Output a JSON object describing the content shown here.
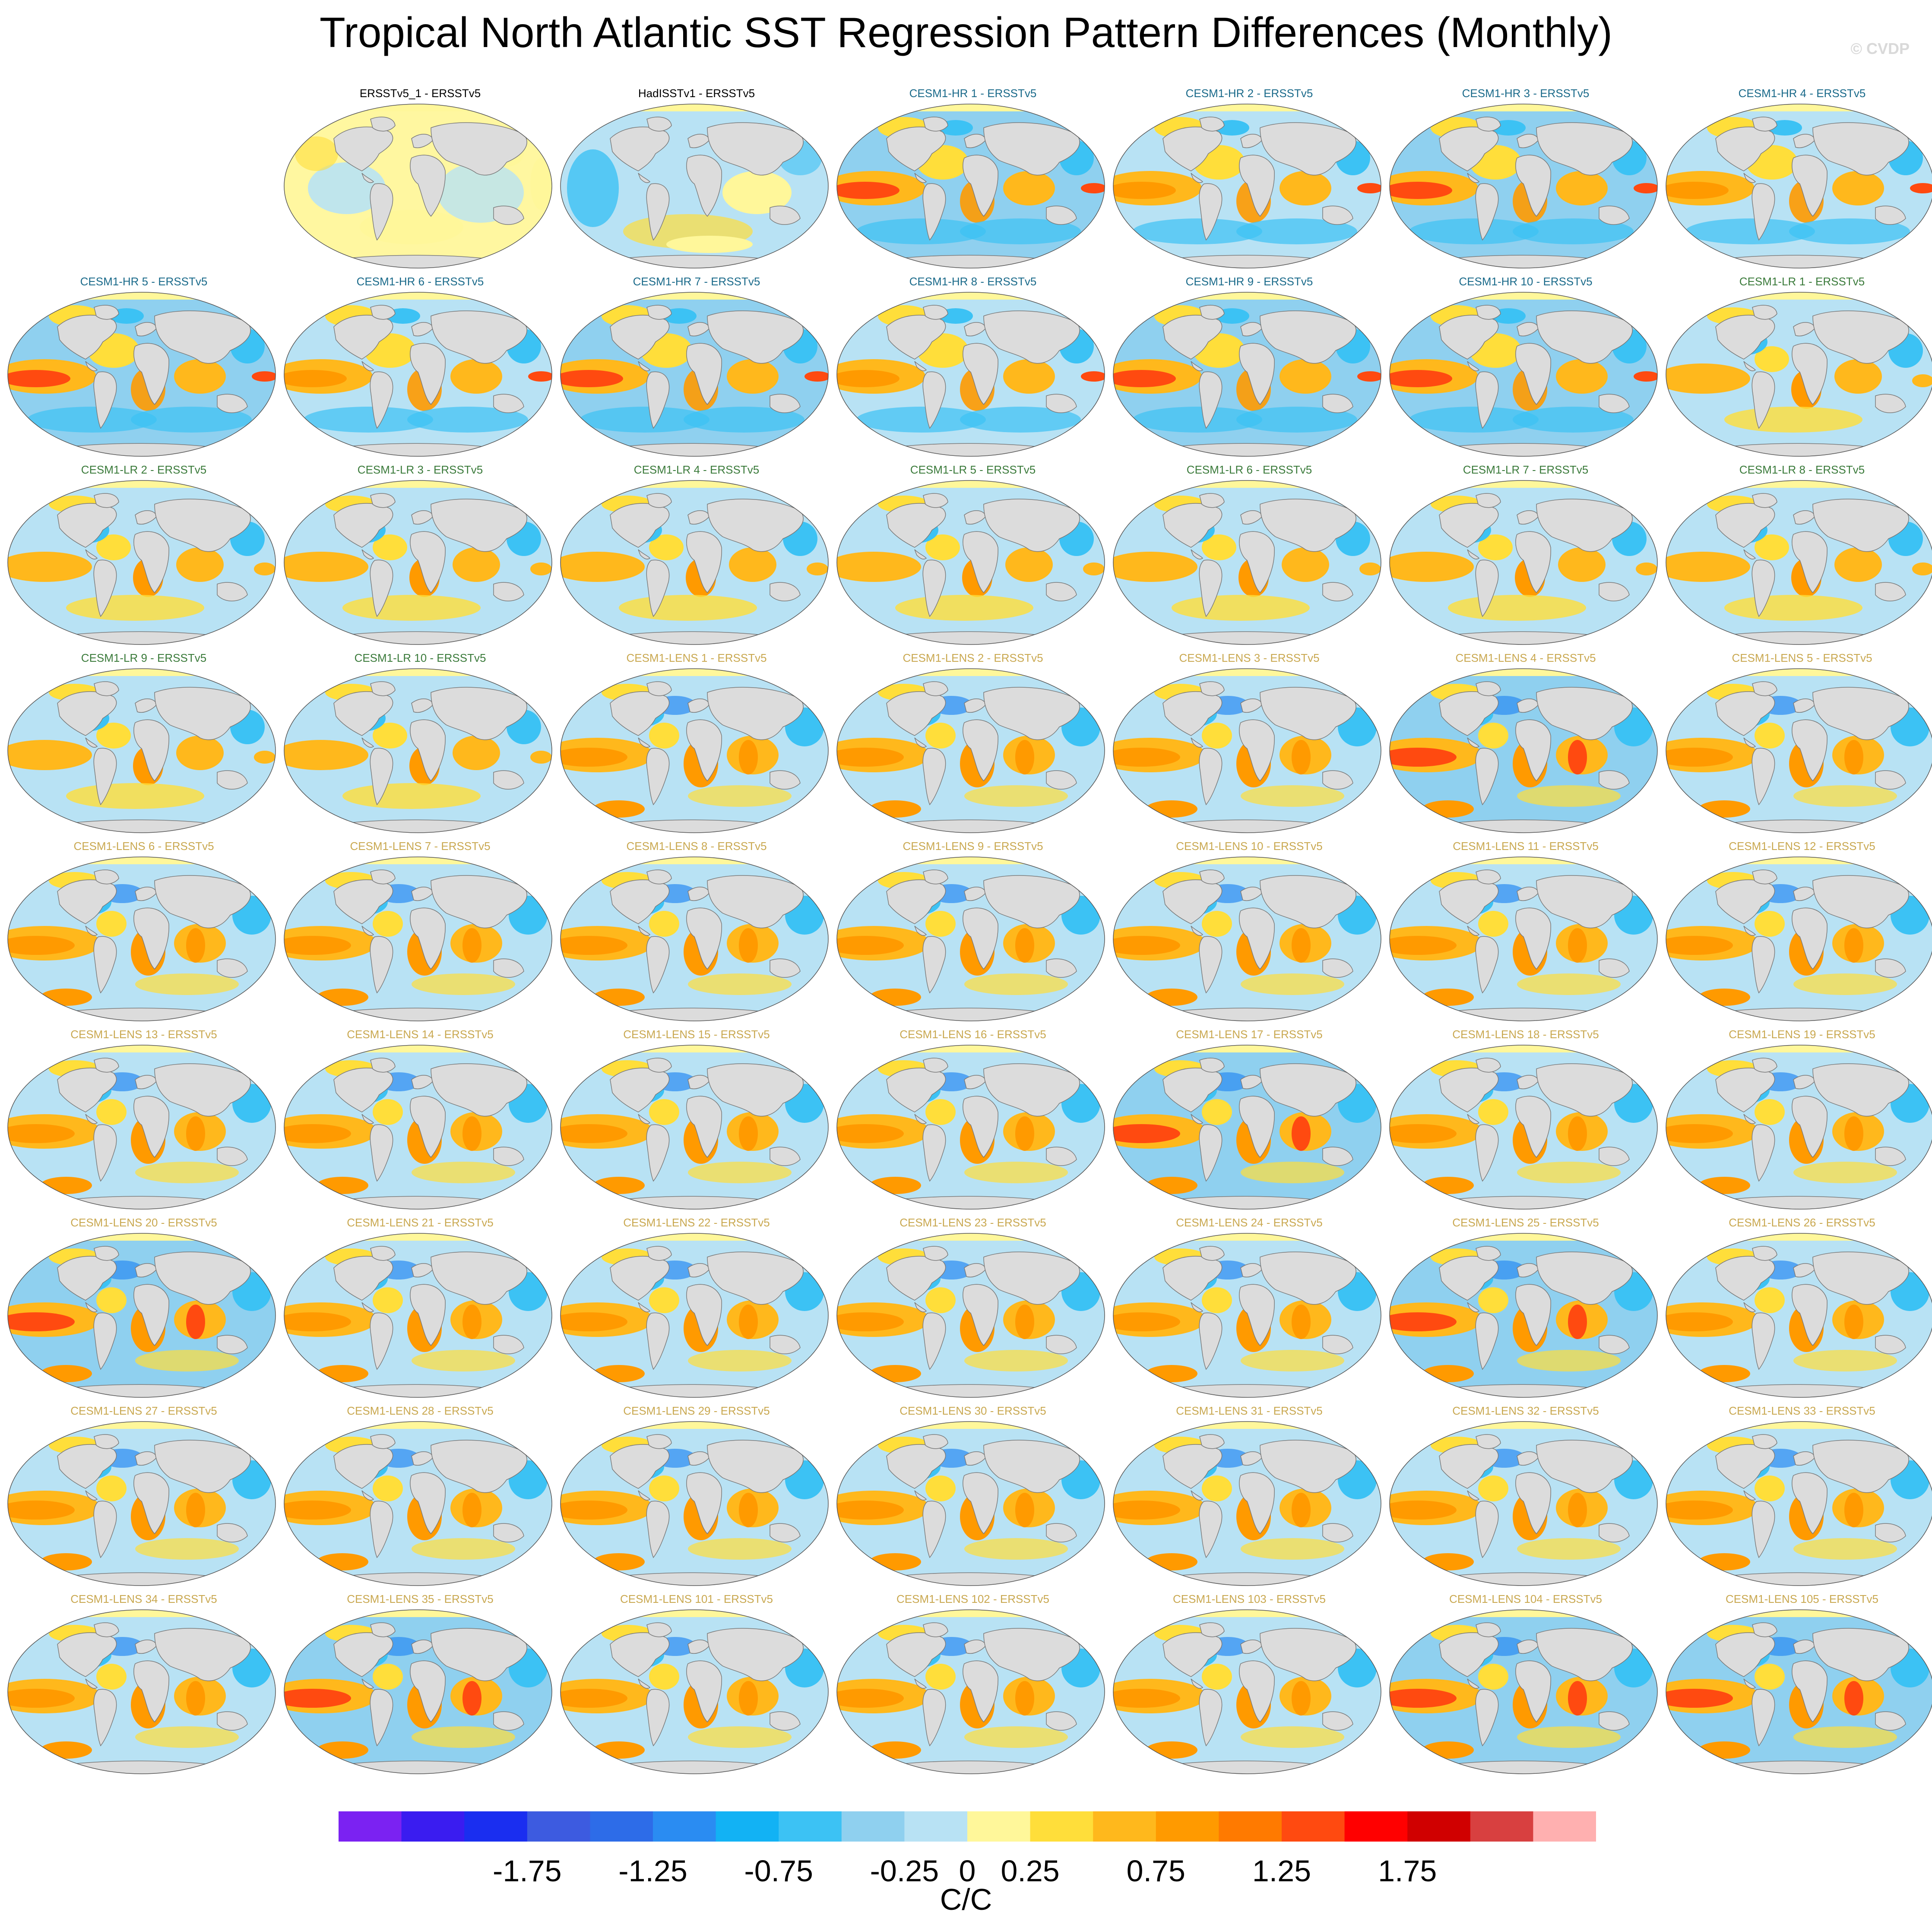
{
  "title": "Tropical North Atlantic SST Regression Pattern Differences (Monthly)",
  "watermark": "© CVDP",
  "colors": {
    "obs_title": "#000000",
    "hr_title": "#1a6a8a",
    "lr_title": "#3a7a3a",
    "lens_title": "#c9a850",
    "land": "#dcdcdc",
    "coast": "#7a7a7a"
  },
  "panels": [
    {
      "label": "ERSSTv5_1 - ERSSTv5",
      "group": "obs",
      "style": 0
    },
    {
      "label": "HadISSTv1 - ERSSTv5",
      "group": "obs",
      "style": 1
    },
    {
      "label": "CESM1-HR 1 - ERSSTv5",
      "group": "hr",
      "style": 2
    },
    {
      "label": "CESM1-HR 2 - ERSSTv5",
      "group": "hr",
      "style": 3
    },
    {
      "label": "CESM1-HR 3 - ERSSTv5",
      "group": "hr",
      "style": 2
    },
    {
      "label": "CESM1-HR 4 - ERSSTv5",
      "group": "hr",
      "style": 3
    },
    {
      "label": "CESM1-HR 5 - ERSSTv5",
      "group": "hr",
      "style": 2
    },
    {
      "label": "CESM1-HR 6 - ERSSTv5",
      "group": "hr",
      "style": 3
    },
    {
      "label": "CESM1-HR 7 - ERSSTv5",
      "group": "hr",
      "style": 2
    },
    {
      "label": "CESM1-HR 8 - ERSSTv5",
      "group": "hr",
      "style": 3
    },
    {
      "label": "CESM1-HR 9 - ERSSTv5",
      "group": "hr",
      "style": 2
    },
    {
      "label": "CESM1-HR 10 - ERSSTv5",
      "group": "hr",
      "style": 2
    },
    {
      "label": "CESM1-LR 1 - ERSSTv5",
      "group": "lr",
      "style": 4
    },
    {
      "label": "CESM1-LR 2 - ERSSTv5",
      "group": "lr",
      "style": 4
    },
    {
      "label": "CESM1-LR 3 - ERSSTv5",
      "group": "lr",
      "style": 4
    },
    {
      "label": "CESM1-LR 4 - ERSSTv5",
      "group": "lr",
      "style": 4
    },
    {
      "label": "CESM1-LR 5 - ERSSTv5",
      "group": "lr",
      "style": 4
    },
    {
      "label": "CESM1-LR 6 - ERSSTv5",
      "group": "lr",
      "style": 4
    },
    {
      "label": "CESM1-LR 7 - ERSSTv5",
      "group": "lr",
      "style": 4
    },
    {
      "label": "CESM1-LR 8 - ERSSTv5",
      "group": "lr",
      "style": 4
    },
    {
      "label": "CESM1-LR 9 - ERSSTv5",
      "group": "lr",
      "style": 4
    },
    {
      "label": "CESM1-LR 10 - ERSSTv5",
      "group": "lr",
      "style": 4
    },
    {
      "label": "CESM1-LENS 1 - ERSSTv5",
      "group": "lens",
      "style": 5
    },
    {
      "label": "CESM1-LENS 2 - ERSSTv5",
      "group": "lens",
      "style": 5
    },
    {
      "label": "CESM1-LENS 3 - ERSSTv5",
      "group": "lens",
      "style": 5
    },
    {
      "label": "CESM1-LENS 4 - ERSSTv5",
      "group": "lens",
      "style": 6
    },
    {
      "label": "CESM1-LENS 5 - ERSSTv5",
      "group": "lens",
      "style": 5
    },
    {
      "label": "CESM1-LENS 6 - ERSSTv5",
      "group": "lens",
      "style": 5
    },
    {
      "label": "CESM1-LENS 7 - ERSSTv5",
      "group": "lens",
      "style": 5
    },
    {
      "label": "CESM1-LENS 8 - ERSSTv5",
      "group": "lens",
      "style": 5
    },
    {
      "label": "CESM1-LENS 9 - ERSSTv5",
      "group": "lens",
      "style": 5
    },
    {
      "label": "CESM1-LENS 10 - ERSSTv5",
      "group": "lens",
      "style": 5
    },
    {
      "label": "CESM1-LENS 11 - ERSSTv5",
      "group": "lens",
      "style": 5
    },
    {
      "label": "CESM1-LENS 12 - ERSSTv5",
      "group": "lens",
      "style": 5
    },
    {
      "label": "CESM1-LENS 13 - ERSSTv5",
      "group": "lens",
      "style": 5
    },
    {
      "label": "CESM1-LENS 14 - ERSSTv5",
      "group": "lens",
      "style": 5
    },
    {
      "label": "CESM1-LENS 15 - ERSSTv5",
      "group": "lens",
      "style": 5
    },
    {
      "label": "CESM1-LENS 16 - ERSSTv5",
      "group": "lens",
      "style": 5
    },
    {
      "label": "CESM1-LENS 17 - ERSSTv5",
      "group": "lens",
      "style": 6
    },
    {
      "label": "CESM1-LENS 18 - ERSSTv5",
      "group": "lens",
      "style": 5
    },
    {
      "label": "CESM1-LENS 19 - ERSSTv5",
      "group": "lens",
      "style": 5
    },
    {
      "label": "CESM1-LENS 20 - ERSSTv5",
      "group": "lens",
      "style": 6
    },
    {
      "label": "CESM1-LENS 21 - ERSSTv5",
      "group": "lens",
      "style": 5
    },
    {
      "label": "CESM1-LENS 22 - ERSSTv5",
      "group": "lens",
      "style": 5
    },
    {
      "label": "CESM1-LENS 23 - ERSSTv5",
      "group": "lens",
      "style": 5
    },
    {
      "label": "CESM1-LENS 24 - ERSSTv5",
      "group": "lens",
      "style": 5
    },
    {
      "label": "CESM1-LENS 25 - ERSSTv5",
      "group": "lens",
      "style": 6
    },
    {
      "label": "CESM1-LENS 26 - ERSSTv5",
      "group": "lens",
      "style": 5
    },
    {
      "label": "CESM1-LENS 27 - ERSSTv5",
      "group": "lens",
      "style": 5
    },
    {
      "label": "CESM1-LENS 28 - ERSSTv5",
      "group": "lens",
      "style": 5
    },
    {
      "label": "CESM1-LENS 29 - ERSSTv5",
      "group": "lens",
      "style": 5
    },
    {
      "label": "CESM1-LENS 30 - ERSSTv5",
      "group": "lens",
      "style": 5
    },
    {
      "label": "CESM1-LENS 31 - ERSSTv5",
      "group": "lens",
      "style": 5
    },
    {
      "label": "CESM1-LENS 32 - ERSSTv5",
      "group": "lens",
      "style": 5
    },
    {
      "label": "CESM1-LENS 33 - ERSSTv5",
      "group": "lens",
      "style": 5
    },
    {
      "label": "CESM1-LENS 34 - ERSSTv5",
      "group": "lens",
      "style": 5
    },
    {
      "label": "CESM1-LENS 35 - ERSSTv5",
      "group": "lens",
      "style": 6
    },
    {
      "label": "CESM1-LENS 101 - ERSSTv5",
      "group": "lens",
      "style": 5
    },
    {
      "label": "CESM1-LENS 102 - ERSSTv5",
      "group": "lens",
      "style": 5
    },
    {
      "label": "CESM1-LENS 103 - ERSSTv5",
      "group": "lens",
      "style": 5
    },
    {
      "label": "CESM1-LENS 104 - ERSSTv5",
      "group": "lens",
      "style": 6
    },
    {
      "label": "CESM1-LENS 105 - ERSSTv5",
      "group": "lens",
      "style": 6
    }
  ],
  "colorbar": {
    "colors": [
      "#7b22f2",
      "#3a1cf0",
      "#1a2ef0",
      "#3d5be0",
      "#2d6ce8",
      "#2a8cf2",
      "#12b2f4",
      "#3cc2f4",
      "#8fd0ef",
      "#b8e2f4",
      "#fff79a",
      "#ffde3a",
      "#ffb81c",
      "#ff9a00",
      "#ff7a00",
      "#ff4a10",
      "#ff0000",
      "#d00000",
      "#d84040",
      "#ffb0b0"
    ],
    "tick_labels": [
      "-1.75",
      "-1.25",
      "-0.75",
      "-0.25",
      "0",
      "0.25",
      "0.75",
      "1.25",
      "1.75"
    ],
    "units": "C/C"
  }
}
